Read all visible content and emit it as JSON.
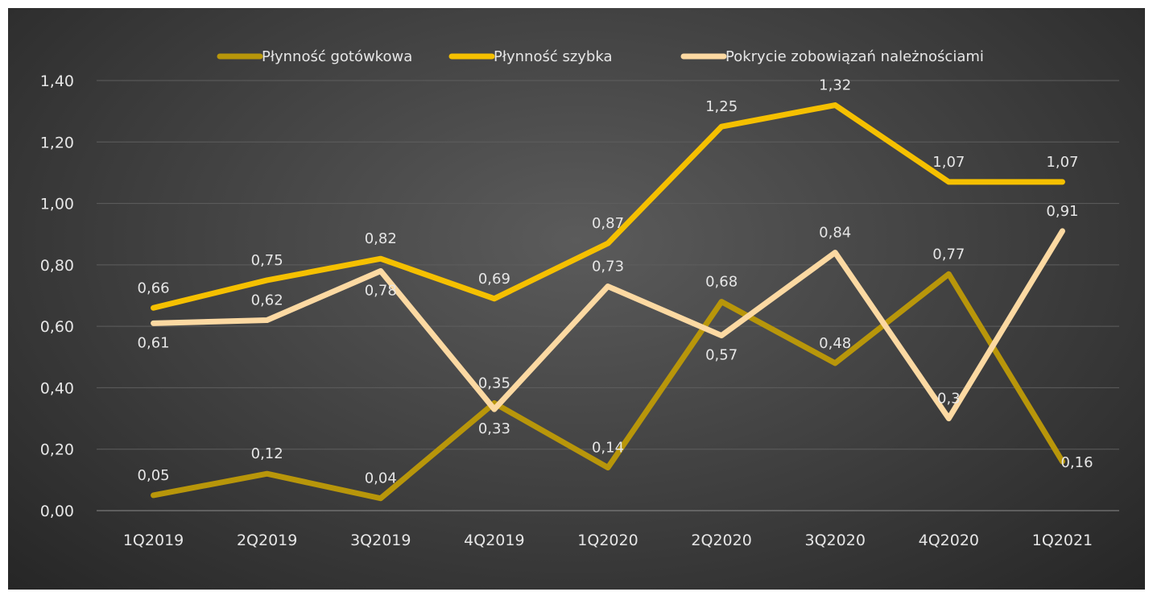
{
  "chart_data": {
    "type": "line",
    "categories": [
      "1Q2019",
      "2Q2019",
      "3Q2019",
      "4Q2019",
      "1Q2020",
      "2Q2020",
      "3Q2020",
      "4Q2020",
      "1Q2021"
    ],
    "series": [
      {
        "name": "Płynność gotówkowa",
        "color": "#b8960a",
        "values": [
          0.05,
          0.12,
          0.04,
          0.35,
          0.14,
          0.68,
          0.48,
          0.77,
          0.16
        ],
        "labels": [
          "0,05",
          "0,12",
          "0,04",
          "0,35",
          "0,14",
          "0,68",
          "0,48",
          "0,77",
          "0,16"
        ]
      },
      {
        "name": "Płynność szybka",
        "color": "#f5c000",
        "values": [
          0.66,
          0.75,
          0.82,
          0.69,
          0.87,
          1.25,
          1.32,
          1.07,
          1.07
        ],
        "labels": [
          "0,66",
          "0,75",
          "0,82",
          "0,69",
          "0,87",
          "1,25",
          "1,32",
          "1,07",
          "1,07"
        ]
      },
      {
        "name": "Pokrycie zobowiązań należnościami",
        "color": "#fcd9a2",
        "values": [
          0.61,
          0.62,
          0.78,
          0.33,
          0.73,
          0.57,
          0.84,
          0.3,
          0.91
        ],
        "labels": [
          "0,61",
          "0,62",
          "0,78",
          "0,33",
          "0,73",
          "0,57",
          "0,84",
          "0,3",
          "0,91"
        ]
      }
    ],
    "ylim": [
      0,
      1.4
    ],
    "yticks": [
      0,
      0.2,
      0.4,
      0.6,
      0.8,
      1.0,
      1.2,
      1.4
    ],
    "ytick_labels": [
      "0,00",
      "0,20",
      "0,40",
      "0,60",
      "0,80",
      "1,00",
      "1,20",
      "1,40"
    ],
    "grid": true,
    "legend_position": "top",
    "title": "",
    "xlabel": "",
    "ylabel": ""
  }
}
